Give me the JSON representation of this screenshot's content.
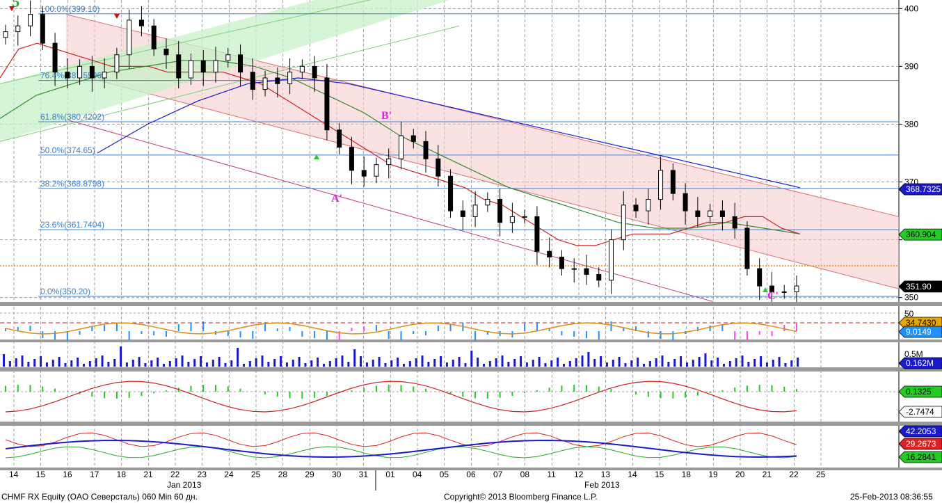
{
  "chart_data": {
    "type": "candlestick",
    "security": "CHMF RX Equity (OAO Северсталь) 060 Min 60 дн.",
    "copyright": "Copyright© 2013 Bloomberg Finance L.P.",
    "timestamp": "25-Feb-2013 08:36:55",
    "month_labels": [
      "Jan 2013",
      "Feb 2013"
    ],
    "x_ticks": [
      "14",
      "15",
      "16",
      "17",
      "18",
      "21",
      "22",
      "23",
      "24",
      "25",
      "28",
      "29",
      "30",
      "31",
      "01",
      "04",
      "05",
      "06",
      "07",
      "08",
      "11",
      "12",
      "13",
      "14",
      "15",
      "18",
      "19",
      "20",
      "21",
      "22",
      "25"
    ],
    "price_axis": {
      "ticks": [
        400,
        390,
        380,
        370,
        360,
        350
      ],
      "tick_labels": [
        "400",
        "390",
        "380",
        "370",
        "350"
      ],
      "ylim": [
        349,
        401
      ]
    },
    "price_close": [
      396,
      397,
      399,
      394,
      389,
      388,
      390,
      388,
      389,
      392,
      398,
      397,
      393,
      392,
      388,
      391,
      389,
      391,
      392,
      389,
      386,
      388,
      387,
      389,
      390,
      388,
      379,
      376,
      372,
      371,
      373,
      374,
      378,
      377,
      374,
      371,
      365,
      364,
      366,
      367,
      363,
      364,
      364,
      358,
      357,
      355,
      355,
      354,
      353,
      360,
      366,
      365,
      367,
      372,
      368,
      365,
      364,
      365,
      364,
      362,
      355,
      352,
      351,
      351,
      352
    ],
    "series": [
      {
        "name": "ma_red",
        "color": "#d32020",
        "values": [
          388,
          393,
          394,
          393,
          392,
          391,
          390,
          390,
          390,
          389,
          389,
          389,
          389,
          388,
          387,
          385,
          383,
          381,
          379,
          377,
          375,
          373,
          372,
          371,
          370,
          369,
          367,
          366,
          364,
          362,
          360,
          359,
          359,
          360,
          361,
          361,
          361,
          362,
          363,
          363,
          364,
          364,
          362,
          361
        ]
      },
      {
        "name": "ma_green",
        "color": "#2e8b2e",
        "values": [
          381,
          385,
          387,
          389,
          390,
          391,
          391,
          390,
          388,
          385,
          382,
          378,
          375,
          372,
          369,
          367,
          365,
          363,
          362,
          362,
          363,
          362,
          361
        ]
      },
      {
        "name": "ma_blue",
        "color": "#1a1acc",
        "values": [
          375,
          380,
          384,
          387,
          388,
          387,
          385,
          383,
          381,
          379,
          377,
          375,
          373,
          371,
          369
        ]
      }
    ],
    "fibonacci": [
      {
        "label": "100.0%(399.10)",
        "value": 399.1
      },
      {
        "label": "76.4%(387.5596)",
        "value": 387.5596
      },
      {
        "label": "61.8%(380.4202)",
        "value": 380.4202
      },
      {
        "label": "50.0%(374.65)",
        "value": 374.65
      },
      {
        "label": "38.2%(368.8798)",
        "value": 368.8798
      },
      {
        "label": "23.6%(361.7404)",
        "value": 361.7404
      },
      {
        "label": "0.0%(350.20)",
        "value": 350.2
      }
    ],
    "horizontal_levels": [
      {
        "value": 355.5,
        "color": "#ff8c00",
        "style": "dotted"
      }
    ],
    "wave_labels": [
      {
        "text": "5",
        "color": "#3aa63a"
      },
      {
        "text": "B'",
        "color": "#e020e0"
      },
      {
        "text": "A'",
        "color": "#e020e0"
      },
      {
        "text": "C'",
        "color": "#e020e0"
      }
    ],
    "price_badges": [
      {
        "text": "368.7325",
        "bg": "#1a1acc",
        "fg": "#ffffff"
      },
      {
        "text": "360.904",
        "bg": "#22cc22",
        "fg": "#000000"
      },
      {
        "text": "351.90",
        "bg": "#000000",
        "fg": "#ffffff"
      }
    ],
    "subpanels": [
      {
        "name": "rsi",
        "tick_labels": [
          "50"
        ],
        "badges": [
          {
            "text": "34.7430",
            "bg": "#e6a800",
            "fg": "#000"
          },
          {
            "text": "9.0149",
            "bg": "#1e90ff",
            "fg": "#fff"
          }
        ],
        "ref_level": 37
      },
      {
        "name": "volume",
        "tick_labels": [
          "0.5M"
        ],
        "badges": [
          {
            "text": "0.162M",
            "bg": "#1a1acc",
            "fg": "#fff"
          }
        ]
      },
      {
        "name": "macd",
        "badges": [
          {
            "text": "0.1325",
            "bg": "#22cc22",
            "fg": "#000"
          },
          {
            "text": "-2.7474",
            "bg": "#ffffff",
            "fg": "#000"
          }
        ]
      },
      {
        "name": "dmi",
        "badges": [
          {
            "text": "42.2053",
            "bg": "#1a1acc",
            "fg": "#fff"
          },
          {
            "text": "29.2673",
            "bg": "#e02020",
            "fg": "#fff"
          },
          {
            "text": "16.2841",
            "bg": "#22cc22",
            "fg": "#000"
          }
        ]
      }
    ]
  }
}
